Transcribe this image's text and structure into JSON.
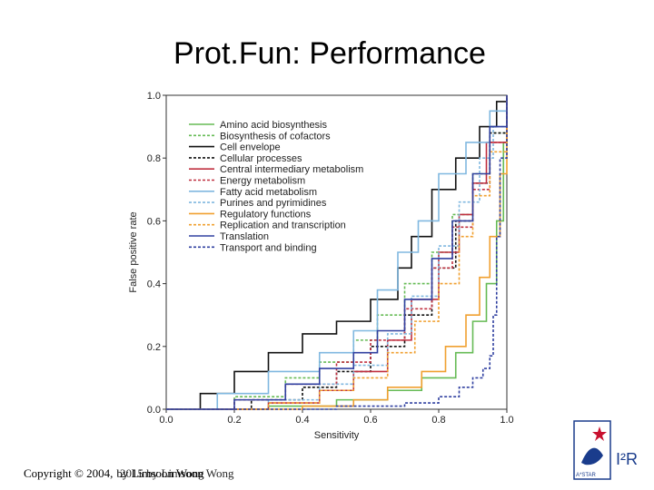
{
  "slide": {
    "title": "Prot.Fun: Performance",
    "footer_copyright": "Copyright © 2004,",
    "footer_author": "by Limsoon Wong",
    "footer_author_overlay": "2015 by Limsoon Wong"
  },
  "logo": {
    "wordmark": "I²R",
    "subtext": "A*STAR",
    "accent": "#c8102e",
    "brand": "#1a3c8c"
  },
  "chart_data": {
    "type": "line",
    "title": "",
    "xlabel": "Sensitivity",
    "ylabel": "False positive rate",
    "xlim": [
      0.0,
      1.0
    ],
    "ylim": [
      0.0,
      1.0
    ],
    "xticks": [
      "0.0",
      "0.2",
      "0.4",
      "0.6",
      "0.8",
      "1.0"
    ],
    "yticks": [
      "0.0",
      "0.2",
      "0.4",
      "0.6",
      "0.8",
      "1.0"
    ],
    "grid": false,
    "legend_position": "top-left",
    "series": [
      {
        "name": "Amino acid biosynthesis",
        "color": "#66bb55",
        "dash": "",
        "points": [
          [
            0,
            0
          ],
          [
            0.3,
            0.01
          ],
          [
            0.5,
            0.03
          ],
          [
            0.65,
            0.06
          ],
          [
            0.75,
            0.1
          ],
          [
            0.85,
            0.18
          ],
          [
            0.9,
            0.28
          ],
          [
            0.94,
            0.4
          ],
          [
            0.97,
            0.6
          ],
          [
            0.99,
            0.85
          ],
          [
            1,
            1
          ]
        ]
      },
      {
        "name": "Biosynthesis of cofactors",
        "color": "#66bb55",
        "dash": "3,2",
        "points": [
          [
            0,
            0
          ],
          [
            0.2,
            0.04
          ],
          [
            0.35,
            0.1
          ],
          [
            0.45,
            0.15
          ],
          [
            0.55,
            0.22
          ],
          [
            0.62,
            0.3
          ],
          [
            0.7,
            0.4
          ],
          [
            0.78,
            0.5
          ],
          [
            0.84,
            0.62
          ],
          [
            0.9,
            0.75
          ],
          [
            0.95,
            0.88
          ],
          [
            1,
            1
          ]
        ]
      },
      {
        "name": "Cell envelope",
        "color": "#111111",
        "dash": "",
        "points": [
          [
            0,
            0
          ],
          [
            0.1,
            0.05
          ],
          [
            0.2,
            0.12
          ],
          [
            0.3,
            0.18
          ],
          [
            0.4,
            0.24
          ],
          [
            0.5,
            0.28
          ],
          [
            0.6,
            0.35
          ],
          [
            0.68,
            0.45
          ],
          [
            0.72,
            0.55
          ],
          [
            0.78,
            0.7
          ],
          [
            0.85,
            0.8
          ],
          [
            0.92,
            0.9
          ],
          [
            0.97,
            0.98
          ],
          [
            1,
            1
          ]
        ]
      },
      {
        "name": "Cellular processes",
        "color": "#111111",
        "dash": "3,2",
        "points": [
          [
            0,
            0
          ],
          [
            0.25,
            0.03
          ],
          [
            0.4,
            0.07
          ],
          [
            0.5,
            0.12
          ],
          [
            0.6,
            0.2
          ],
          [
            0.7,
            0.3
          ],
          [
            0.78,
            0.45
          ],
          [
            0.85,
            0.6
          ],
          [
            0.9,
            0.72
          ],
          [
            0.95,
            0.88
          ],
          [
            1,
            1
          ]
        ]
      },
      {
        "name": "Central intermediary metabolism",
        "color": "#c03040",
        "dash": "",
        "points": [
          [
            0,
            0
          ],
          [
            0.3,
            0.02
          ],
          [
            0.45,
            0.06
          ],
          [
            0.55,
            0.12
          ],
          [
            0.65,
            0.22
          ],
          [
            0.72,
            0.35
          ],
          [
            0.8,
            0.5
          ],
          [
            0.86,
            0.62
          ],
          [
            0.9,
            0.72
          ],
          [
            0.94,
            0.85
          ],
          [
            1,
            1
          ]
        ]
      },
      {
        "name": "Energy metabolism",
        "color": "#c03040",
        "dash": "3,2",
        "points": [
          [
            0,
            0
          ],
          [
            0.2,
            0.03
          ],
          [
            0.35,
            0.08
          ],
          [
            0.5,
            0.15
          ],
          [
            0.6,
            0.22
          ],
          [
            0.7,
            0.32
          ],
          [
            0.78,
            0.45
          ],
          [
            0.84,
            0.58
          ],
          [
            0.9,
            0.7
          ],
          [
            0.95,
            0.85
          ],
          [
            1,
            1
          ]
        ]
      },
      {
        "name": "Fatty acid metabolism",
        "color": "#80b8e0",
        "dash": "",
        "points": [
          [
            0,
            0
          ],
          [
            0.15,
            0.05
          ],
          [
            0.3,
            0.12
          ],
          [
            0.45,
            0.18
          ],
          [
            0.55,
            0.25
          ],
          [
            0.62,
            0.38
          ],
          [
            0.68,
            0.5
          ],
          [
            0.74,
            0.6
          ],
          [
            0.8,
            0.75
          ],
          [
            0.88,
            0.85
          ],
          [
            0.95,
            0.95
          ],
          [
            1,
            1
          ]
        ]
      },
      {
        "name": "Purines and pyrimidines",
        "color": "#80b8e0",
        "dash": "3,2",
        "points": [
          [
            0,
            0
          ],
          [
            0.3,
            0.03
          ],
          [
            0.45,
            0.08
          ],
          [
            0.55,
            0.14
          ],
          [
            0.65,
            0.24
          ],
          [
            0.72,
            0.36
          ],
          [
            0.8,
            0.52
          ],
          [
            0.86,
            0.66
          ],
          [
            0.92,
            0.8
          ],
          [
            0.96,
            0.9
          ],
          [
            1,
            1
          ]
        ]
      },
      {
        "name": "Regulatory functions",
        "color": "#f0a030",
        "dash": "",
        "points": [
          [
            0,
            0
          ],
          [
            0.4,
            0.01
          ],
          [
            0.55,
            0.03
          ],
          [
            0.65,
            0.07
          ],
          [
            0.75,
            0.12
          ],
          [
            0.82,
            0.2
          ],
          [
            0.88,
            0.3
          ],
          [
            0.92,
            0.42
          ],
          [
            0.95,
            0.55
          ],
          [
            0.98,
            0.75
          ],
          [
            1,
            1
          ]
        ]
      },
      {
        "name": "Replication and transcription",
        "color": "#f0a030",
        "dash": "3,2",
        "points": [
          [
            0,
            0
          ],
          [
            0.3,
            0.02
          ],
          [
            0.45,
            0.06
          ],
          [
            0.55,
            0.1
          ],
          [
            0.65,
            0.18
          ],
          [
            0.73,
            0.28
          ],
          [
            0.8,
            0.4
          ],
          [
            0.86,
            0.55
          ],
          [
            0.9,
            0.68
          ],
          [
            0.95,
            0.82
          ],
          [
            1,
            1
          ]
        ]
      },
      {
        "name": "Translation",
        "color": "#3040a0",
        "dash": "",
        "points": [
          [
            0,
            0
          ],
          [
            0.2,
            0.03
          ],
          [
            0.35,
            0.08
          ],
          [
            0.45,
            0.13
          ],
          [
            0.55,
            0.18
          ],
          [
            0.62,
            0.25
          ],
          [
            0.7,
            0.35
          ],
          [
            0.78,
            0.48
          ],
          [
            0.84,
            0.6
          ],
          [
            0.9,
            0.75
          ],
          [
            0.95,
            0.9
          ],
          [
            1,
            1
          ]
        ]
      },
      {
        "name": "Transport and binding",
        "color": "#3040a0",
        "dash": "3,2",
        "points": [
          [
            0,
            0
          ],
          [
            0.5,
            0.01
          ],
          [
            0.7,
            0.02
          ],
          [
            0.8,
            0.04
          ],
          [
            0.86,
            0.07
          ],
          [
            0.9,
            0.1
          ],
          [
            0.93,
            0.13
          ],
          [
            0.95,
            0.17
          ],
          [
            0.96,
            0.3
          ],
          [
            0.97,
            0.55
          ],
          [
            0.98,
            0.8
          ],
          [
            1,
            1
          ]
        ]
      }
    ]
  }
}
